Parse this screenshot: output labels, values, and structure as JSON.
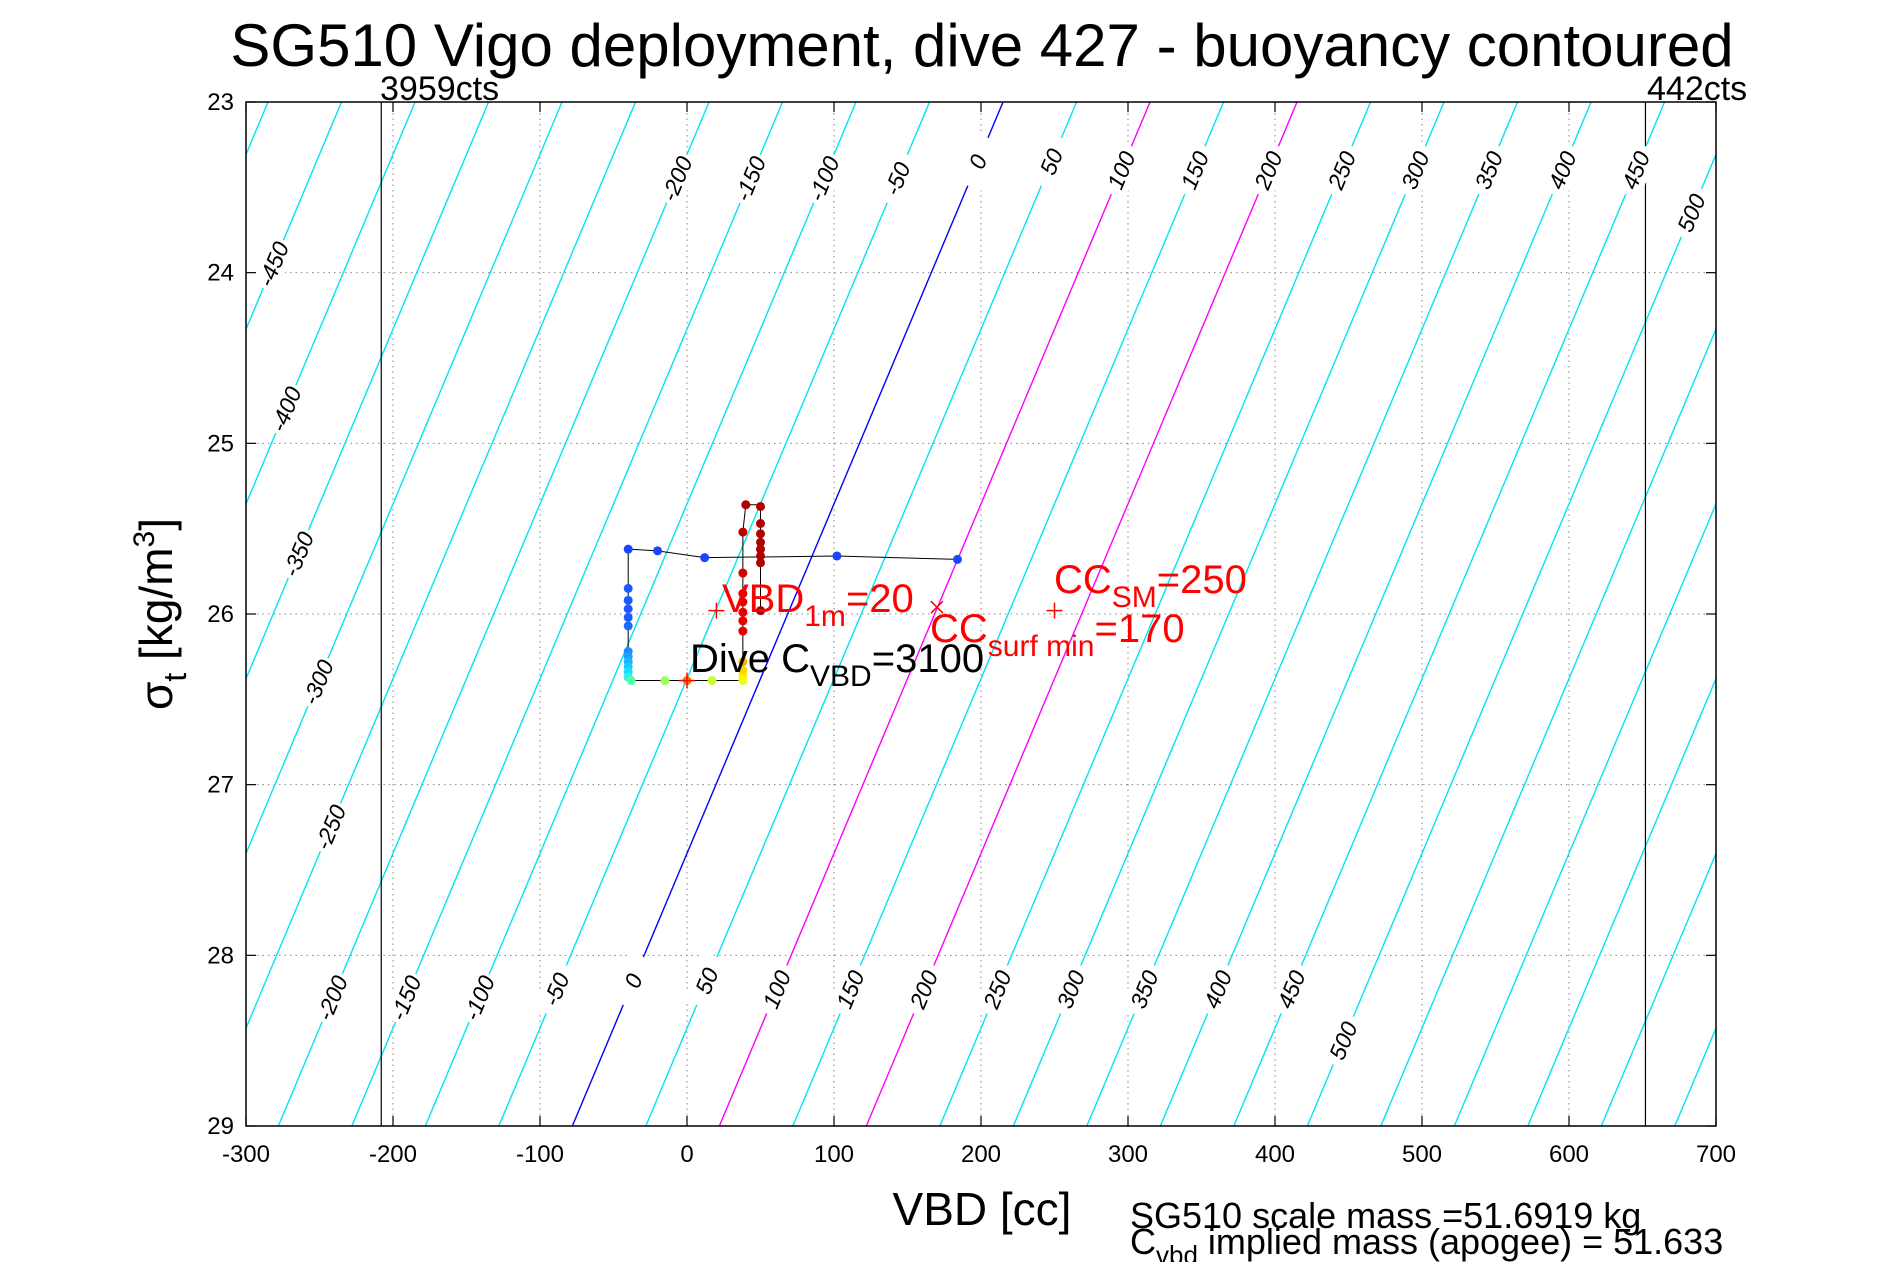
{
  "chart_data": {
    "type": "line",
    "title": "SG510 Vigo deployment, dive 427 - buoyancy contoured",
    "xlabel": "VBD [cc]",
    "ylabel_main": "σ",
    "ylabel_sub": "t",
    "ylabel_units": " [kg/m",
    "ylabel_sup": "3",
    "ylabel_close": "]",
    "xlim": [
      -300,
      700
    ],
    "ylim": [
      23,
      29
    ],
    "y_reversed": true,
    "grid": true,
    "xticks": [
      -300,
      -200,
      -100,
      0,
      100,
      200,
      300,
      400,
      500,
      600,
      700
    ],
    "xtick_labels": [
      "-300",
      "-200",
      "-100",
      "0",
      "100",
      "200",
      "300",
      "400",
      "500",
      "600",
      "700"
    ],
    "yticks": [
      23,
      24,
      25,
      26,
      27,
      28,
      29
    ],
    "ytick_labels": [
      "23",
      "24",
      "25",
      "26",
      "27",
      "28",
      "29"
    ],
    "contours": {
      "levels": [
        -600,
        -550,
        -500,
        -450,
        -400,
        -350,
        -300,
        -250,
        -200,
        -150,
        -100,
        -50,
        0,
        50,
        100,
        150,
        200,
        250,
        300,
        350,
        400,
        450,
        500,
        550,
        600,
        650,
        700,
        750,
        800
      ],
      "zero_vbd_at_sigma23": 215,
      "zero_vbd_at_sigma29": -78,
      "color": "#00e5ee",
      "zero_color": "#0000ff",
      "highlight_levels": [
        100,
        200
      ],
      "highlight_color": "#ff00ff",
      "top_labels": [
        {
          "text": "-450",
          "level": -450,
          "sigma": 23.95
        },
        {
          "text": "-400",
          "level": -400,
          "sigma": 24.8
        },
        {
          "text": "-350",
          "level": -350,
          "sigma": 25.65
        },
        {
          "text": "-300",
          "level": -300,
          "sigma": 26.4
        },
        {
          "text": "-250",
          "level": -250,
          "sigma": 27.25
        },
        {
          "text": "-200",
          "level": -200,
          "sigma": 23.45
        },
        {
          "text": "-150",
          "level": -150,
          "sigma": 23.45
        },
        {
          "text": "-100",
          "level": -100,
          "sigma": 23.45
        },
        {
          "text": "-50",
          "level": -50,
          "sigma": 23.45
        },
        {
          "text": "0",
          "level": 0,
          "sigma": 23.35
        },
        {
          "text": "50",
          "level": 50,
          "sigma": 23.35
        },
        {
          "text": "100",
          "level": 100,
          "sigma": 23.4
        },
        {
          "text": "150",
          "level": 150,
          "sigma": 23.4
        },
        {
          "text": "200",
          "level": 200,
          "sigma": 23.4
        },
        {
          "text": "250",
          "level": 250,
          "sigma": 23.4
        },
        {
          "text": "300",
          "level": 300,
          "sigma": 23.4
        },
        {
          "text": "350",
          "level": 350,
          "sigma": 23.4
        },
        {
          "text": "400",
          "level": 400,
          "sigma": 23.4
        },
        {
          "text": "450",
          "level": 450,
          "sigma": 23.4
        },
        {
          "text": "500",
          "level": 500,
          "sigma": 23.65
        }
      ],
      "bottom_labels": [
        {
          "text": "-200",
          "level": -200,
          "sigma": 28.25
        },
        {
          "text": "-150",
          "level": -150,
          "sigma": 28.25
        },
        {
          "text": "-100",
          "level": -100,
          "sigma": 28.25
        },
        {
          "text": "-50",
          "level": -50,
          "sigma": 28.2
        },
        {
          "text": "0",
          "level": 0,
          "sigma": 28.15
        },
        {
          "text": "50",
          "level": 50,
          "sigma": 28.15
        },
        {
          "text": "100",
          "level": 100,
          "sigma": 28.2
        },
        {
          "text": "150",
          "level": 150,
          "sigma": 28.2
        },
        {
          "text": "200",
          "level": 200,
          "sigma": 28.2
        },
        {
          "text": "250",
          "level": 250,
          "sigma": 28.2
        },
        {
          "text": "300",
          "level": 300,
          "sigma": 28.2
        },
        {
          "text": "350",
          "level": 350,
          "sigma": 28.2
        },
        {
          "text": "400",
          "level": 400,
          "sigma": 28.2
        },
        {
          "text": "450",
          "level": 450,
          "sigma": 28.2
        },
        {
          "text": "500",
          "level": 500,
          "sigma": 28.5
        }
      ]
    },
    "limit_lines": [
      {
        "vbd": -208,
        "label": "3959cts"
      },
      {
        "vbd": 652,
        "label": "442cts"
      }
    ],
    "dive_track": {
      "line_points": [
        [
          -40,
          25.62
        ],
        [
          -20,
          25.63
        ],
        [
          12,
          25.67
        ],
        [
          102,
          25.66
        ],
        [
          184,
          25.68
        ],
        [
          184,
          25.68
        ],
        [
          102,
          25.66
        ],
        [
          12,
          25.67
        ],
        [
          -20,
          25.63
        ],
        [
          -40,
          25.62
        ],
        [
          -40,
          25.9
        ],
        [
          -40,
          26.0
        ],
        [
          -40,
          26.1
        ],
        [
          -40,
          26.25
        ],
        [
          -40,
          26.36
        ],
        [
          -38,
          26.39
        ],
        [
          -15,
          26.39
        ],
        [
          0,
          26.39
        ],
        [
          17,
          26.39
        ],
        [
          38,
          26.39
        ],
        [
          38,
          26.3
        ],
        [
          38,
          26.0
        ],
        [
          38,
          25.85
        ],
        [
          38,
          25.52
        ],
        [
          40,
          25.36
        ],
        [
          50,
          25.36
        ],
        [
          50,
          25.45
        ],
        [
          50,
          25.6
        ],
        [
          50,
          25.8
        ],
        [
          50,
          25.98
        ]
      ],
      "points": [
        {
          "vbd": -40,
          "sigma": 25.62,
          "color": "#1a45ff"
        },
        {
          "vbd": -20,
          "sigma": 25.63,
          "color": "#1a45ff"
        },
        {
          "vbd": 12,
          "sigma": 25.67,
          "color": "#1a45ff"
        },
        {
          "vbd": 102,
          "sigma": 25.66,
          "color": "#1a45ff"
        },
        {
          "vbd": 184,
          "sigma": 25.68,
          "color": "#1a45ff"
        },
        {
          "vbd": -40,
          "sigma": 25.85,
          "color": "#1a5aff"
        },
        {
          "vbd": -40,
          "sigma": 25.92,
          "color": "#1a5aff"
        },
        {
          "vbd": -40,
          "sigma": 25.97,
          "color": "#1a5aff"
        },
        {
          "vbd": -40,
          "sigma": 26.02,
          "color": "#1a5aff"
        },
        {
          "vbd": -40,
          "sigma": 26.07,
          "color": "#1a6aff"
        },
        {
          "vbd": -40,
          "sigma": 26.22,
          "color": "#1a8cff"
        },
        {
          "vbd": -40,
          "sigma": 26.25,
          "color": "#1aa0ff"
        },
        {
          "vbd": -40,
          "sigma": 26.28,
          "color": "#1ab4ff"
        },
        {
          "vbd": -40,
          "sigma": 26.31,
          "color": "#1ac8ff"
        },
        {
          "vbd": -40,
          "sigma": 26.34,
          "color": "#1adcff"
        },
        {
          "vbd": -40,
          "sigma": 26.37,
          "color": "#33f0e0"
        },
        {
          "vbd": -38,
          "sigma": 26.39,
          "color": "#55ffb0"
        },
        {
          "vbd": -15,
          "sigma": 26.39,
          "color": "#9cff5a"
        },
        {
          "vbd": 0,
          "sigma": 26.39,
          "color": "#ff7a00"
        },
        {
          "vbd": 17,
          "sigma": 26.39,
          "color": "#c8ff30"
        },
        {
          "vbd": 38,
          "sigma": 26.39,
          "color": "#e6ff20"
        },
        {
          "vbd": 38,
          "sigma": 26.36,
          "color": "#fff000"
        },
        {
          "vbd": 38,
          "sigma": 26.33,
          "color": "#ffd700"
        },
        {
          "vbd": 38,
          "sigma": 26.28,
          "color": "#ffb000"
        },
        {
          "vbd": 38,
          "sigma": 26.1,
          "color": "#e60000"
        },
        {
          "vbd": 38,
          "sigma": 26.04,
          "color": "#e60000"
        },
        {
          "vbd": 38,
          "sigma": 25.99,
          "color": "#e60000"
        },
        {
          "vbd": 38,
          "sigma": 25.93,
          "color": "#e60000"
        },
        {
          "vbd": 38,
          "sigma": 25.88,
          "color": "#e60000"
        },
        {
          "vbd": 38,
          "sigma": 25.76,
          "color": "#d00000"
        },
        {
          "vbd": 38,
          "sigma": 25.52,
          "color": "#c00000"
        },
        {
          "vbd": 40,
          "sigma": 25.36,
          "color": "#b00000"
        },
        {
          "vbd": 50,
          "sigma": 25.37,
          "color": "#b00000"
        },
        {
          "vbd": 50,
          "sigma": 25.47,
          "color": "#b00000"
        },
        {
          "vbd": 50,
          "sigma": 25.53,
          "color": "#b00000"
        },
        {
          "vbd": 50,
          "sigma": 25.58,
          "color": "#b00000"
        },
        {
          "vbd": 50,
          "sigma": 25.62,
          "color": "#b00000"
        },
        {
          "vbd": 50,
          "sigma": 25.66,
          "color": "#b00000"
        },
        {
          "vbd": 50,
          "sigma": 25.7,
          "color": "#b00000"
        },
        {
          "vbd": 50,
          "sigma": 25.98,
          "color": "#b00000"
        }
      ]
    },
    "markers": [
      {
        "symbol": "+",
        "vbd": 20,
        "sigma": 25.98,
        "color": "#ff0000"
      },
      {
        "symbol": "x",
        "vbd": 170,
        "sigma": 25.96,
        "color": "#ff0000"
      },
      {
        "symbol": "+",
        "vbd": 250,
        "sigma": 25.98,
        "color": "#ff0000"
      },
      {
        "symbol": "+",
        "vbd": 0,
        "sigma": 26.39,
        "color": "#ff0000"
      }
    ],
    "annotations": {
      "vbd1m": {
        "main": "VBD",
        "sub": "1m",
        "value": "=20"
      },
      "cc_sm": {
        "main": "CC",
        "sub": "SM",
        "value": "=250"
      },
      "cc_surf": {
        "main": "CC",
        "sub": "surf min",
        "value": "=170"
      },
      "dive_cvbd": {
        "main": "Dive C",
        "sub": "VBD",
        "value": "=3100"
      }
    },
    "footer": {
      "line1": "SG510 scale mass =51.6919 kg",
      "line2_main": "C",
      "line2_sub": "vbd",
      "line2_rest": " implied mass (apogee) = 51.633"
    }
  }
}
